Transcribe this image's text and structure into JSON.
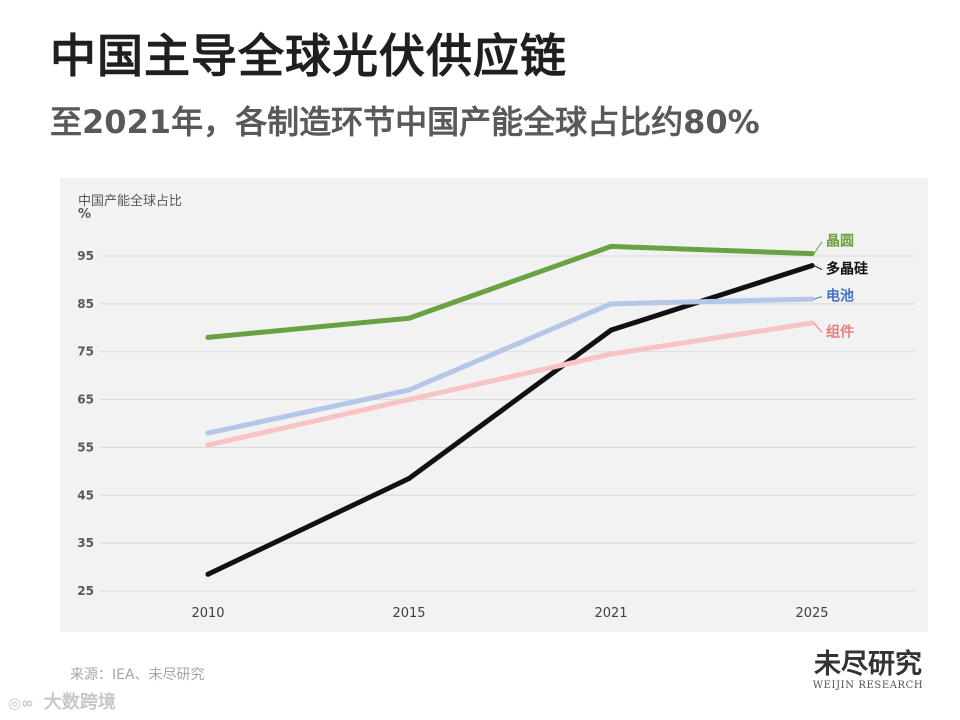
{
  "title": "中国主导全球光伏供应链",
  "subtitle": "至2021年，各制造环节中国产能全球占比约80%",
  "source": "来源：IEA、未尽研究",
  "logo": {
    "cn": "未尽研究",
    "en": "WEIJIN RESEARCH"
  },
  "watermark": "大数跨境",
  "chart_data": {
    "type": "line",
    "ylabel": "中国产能全球占比",
    "yunit": "%",
    "categories": [
      "2010",
      "2015",
      "2021",
      "2025"
    ],
    "yticks": [
      25,
      35,
      45,
      55,
      65,
      75,
      85,
      95
    ],
    "ylim": [
      25,
      95
    ],
    "grid": true,
    "series": [
      {
        "name": "晶圆",
        "color": "#6aa142",
        "label_color": "#6aa142",
        "values": [
          78,
          82,
          97,
          95.5
        ]
      },
      {
        "name": "多晶硅",
        "color": "#111111",
        "label_color": "#111111",
        "values": [
          28.5,
          48.5,
          79.5,
          93
        ]
      },
      {
        "name": "电池",
        "color": "#b4c7e7",
        "label_color": "#4472c4",
        "values": [
          58,
          67,
          85,
          86
        ]
      },
      {
        "name": "组件",
        "color": "#f8c3c3",
        "label_color": "#ec7c7c",
        "values": [
          55.5,
          65,
          74.5,
          81
        ]
      }
    ]
  }
}
